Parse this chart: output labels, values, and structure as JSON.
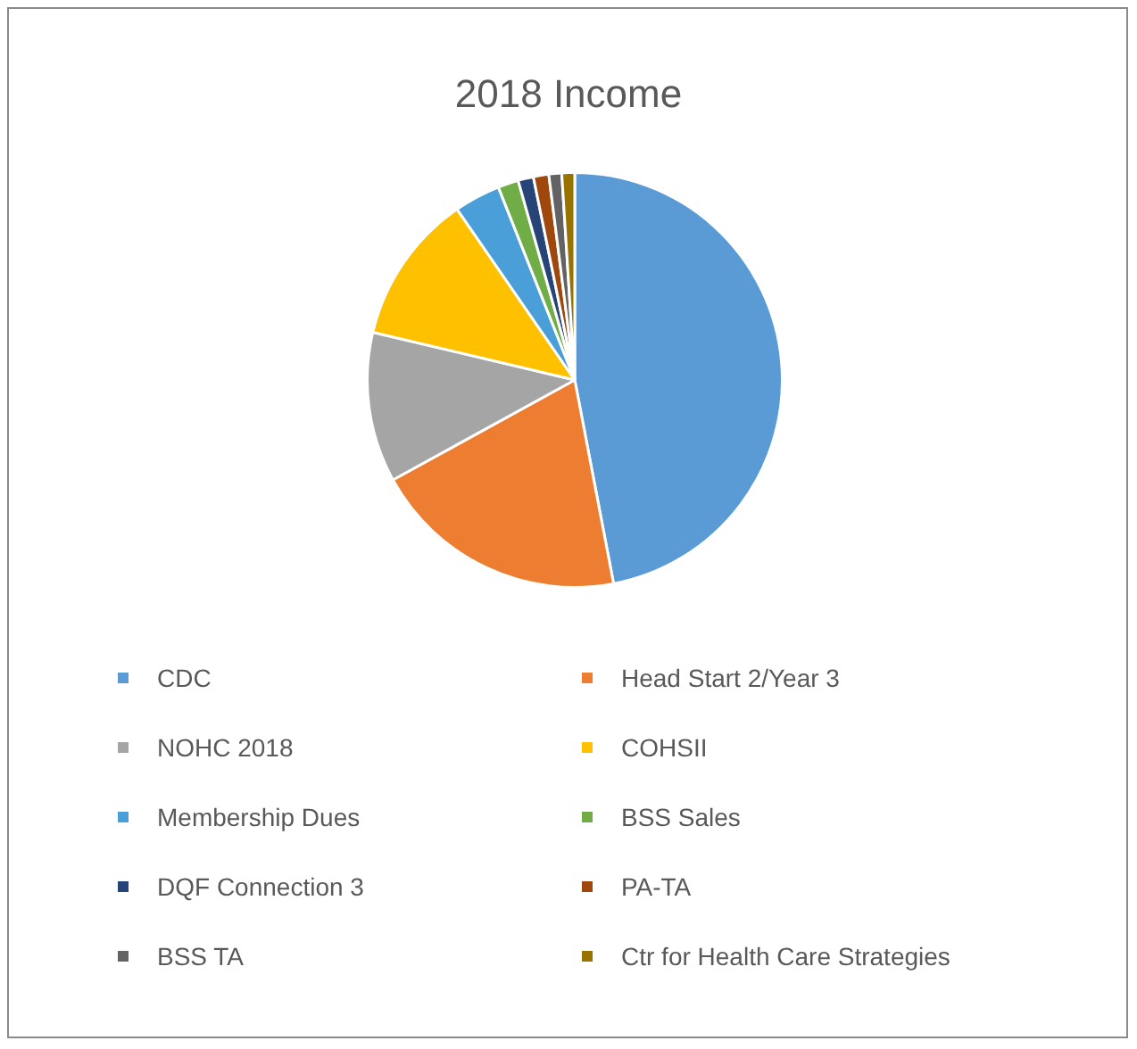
{
  "chart_data": {
    "type": "pie",
    "title": "2018 Income",
    "categories": [
      "CDC",
      "Head Start 2/Year 3",
      "NOHC 2018",
      "COHSII",
      "Membership Dues",
      "BSS Sales",
      "DQF Connection 3",
      "PA-TA",
      "BSS TA",
      "Ctr for Health Care Strategies"
    ],
    "values": [
      47,
      20,
      11.7,
      11.7,
      3.6,
      1.6,
      1.2,
      1.2,
      1,
      1
    ],
    "colors": [
      "#5b9bd5",
      "#ed7d31",
      "#a5a5a5",
      "#ffc000",
      "#4a9fd8",
      "#70ad47",
      "#264478",
      "#9e480e",
      "#636363",
      "#997300"
    ],
    "legend": "bottom"
  }
}
